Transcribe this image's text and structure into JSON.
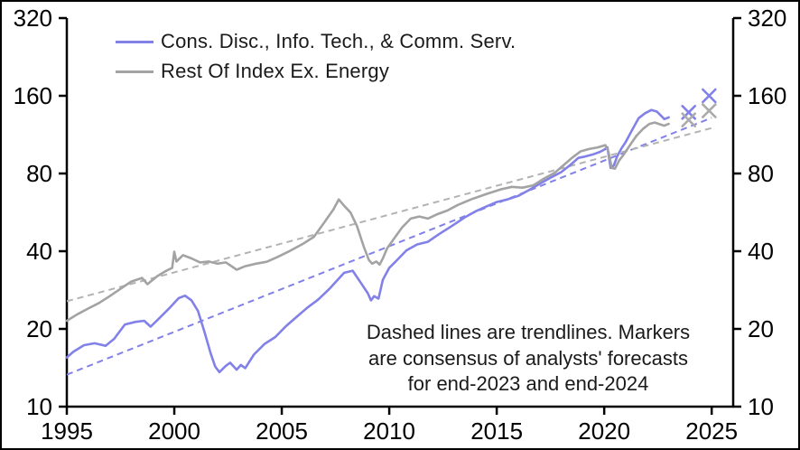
{
  "colors": {
    "tech_line": "#8181e8",
    "rest_line": "#a3a3a3",
    "tech_trend": "#8181e8",
    "rest_trend": "#b3b3b3",
    "axis": "#000000",
    "background": "#ffffff"
  },
  "legend": {
    "items": [
      {
        "label": "Cons. Disc., Info. Tech., & Comm. Serv.",
        "color": "#8181e8"
      },
      {
        "label": "Rest Of Index Ex. Energy",
        "color": "#a3a3a3"
      }
    ]
  },
  "annotation": {
    "lines": [
      "Dashed lines are trendlines. Markers",
      "are consensus of analysts' forecasts",
      "for end-2023 and end-2024"
    ]
  },
  "chart_data": {
    "type": "line",
    "title": "",
    "xlabel": "",
    "ylabel": "",
    "y_scale": "log2",
    "y_ticks": [
      320,
      160,
      80,
      40,
      20,
      10
    ],
    "x_ticks": [
      1995,
      2000,
      2005,
      2010,
      2015,
      2020,
      2025
    ],
    "x_range": [
      1995,
      2026
    ],
    "y_range": [
      10,
      320
    ],
    "grid": false,
    "legend_position": "top-left-inside",
    "series": [
      {
        "name": "Cons. Disc., Info. Tech., & Comm. Serv.",
        "color": "#8181e8",
        "style": "solid",
        "points": [
          [
            1995.0,
            15.5
          ],
          [
            1995.3,
            16.3
          ],
          [
            1995.8,
            17.3
          ],
          [
            1996.3,
            17.6
          ],
          [
            1996.8,
            17.2
          ],
          [
            1997.2,
            18.3
          ],
          [
            1997.7,
            20.8
          ],
          [
            1998.2,
            21.3
          ],
          [
            1998.6,
            21.5
          ],
          [
            1998.9,
            20.4
          ],
          [
            1999.3,
            22.0
          ],
          [
            1999.8,
            24.2
          ],
          [
            2000.2,
            26.3
          ],
          [
            2000.5,
            26.9
          ],
          [
            2000.8,
            25.8
          ],
          [
            2001.1,
            23.5
          ],
          [
            2001.4,
            19.5
          ],
          [
            2001.7,
            16.0
          ],
          [
            2001.9,
            14.3
          ],
          [
            2002.1,
            13.6
          ],
          [
            2002.4,
            14.4
          ],
          [
            2002.6,
            14.8
          ],
          [
            2002.9,
            13.9
          ],
          [
            2003.1,
            14.5
          ],
          [
            2003.3,
            14.1
          ],
          [
            2003.7,
            15.9
          ],
          [
            2004.2,
            17.5
          ],
          [
            2004.7,
            18.6
          ],
          [
            2005.2,
            20.5
          ],
          [
            2005.7,
            22.3
          ],
          [
            2006.2,
            24.2
          ],
          [
            2006.7,
            26.0
          ],
          [
            2007.2,
            28.5
          ],
          [
            2007.6,
            31.0
          ],
          [
            2007.9,
            33.0
          ],
          [
            2008.3,
            33.6
          ],
          [
            2008.7,
            30.0
          ],
          [
            2009.0,
            27.5
          ],
          [
            2009.15,
            25.8
          ],
          [
            2009.3,
            26.8
          ],
          [
            2009.5,
            26.2
          ],
          [
            2009.7,
            31.0
          ],
          [
            2010.0,
            34.5
          ],
          [
            2010.3,
            36.5
          ],
          [
            2010.8,
            40.3
          ],
          [
            2011.3,
            42.5
          ],
          [
            2011.8,
            43.5
          ],
          [
            2012.3,
            46.5
          ],
          [
            2012.9,
            50.0
          ],
          [
            2013.5,
            54.0
          ],
          [
            2014.0,
            57.0
          ],
          [
            2014.5,
            59.5
          ],
          [
            2015.0,
            62.0
          ],
          [
            2015.5,
            63.5
          ],
          [
            2016.0,
            65.5
          ],
          [
            2016.5,
            69.0
          ],
          [
            2017.0,
            73.0
          ],
          [
            2017.5,
            77.0
          ],
          [
            2018.0,
            81.0
          ],
          [
            2018.4,
            86.0
          ],
          [
            2018.8,
            92.0
          ],
          [
            2019.1,
            93.0
          ],
          [
            2019.5,
            95.0
          ],
          [
            2019.8,
            97.0
          ],
          [
            2020.0,
            99.0
          ],
          [
            2020.15,
            101.0
          ],
          [
            2020.3,
            84.0
          ],
          [
            2020.45,
            86.0
          ],
          [
            2020.6,
            93.0
          ],
          [
            2020.8,
            100.0
          ],
          [
            2021.0,
            106.0
          ],
          [
            2021.3,
            118.0
          ],
          [
            2021.6,
            131.0
          ],
          [
            2021.9,
            137.0
          ],
          [
            2022.2,
            141.0
          ],
          [
            2022.45,
            139.0
          ],
          [
            2022.6,
            135.0
          ],
          [
            2022.8,
            130.0
          ],
          [
            2023.0,
            132.0
          ]
        ]
      },
      {
        "name": "Rest Of Index Ex. Energy",
        "color": "#a3a3a3",
        "style": "solid",
        "points": [
          [
            1995.0,
            21.5
          ],
          [
            1995.5,
            22.8
          ],
          [
            1996.0,
            24.0
          ],
          [
            1996.5,
            25.2
          ],
          [
            1997.0,
            26.8
          ],
          [
            1997.5,
            28.6
          ],
          [
            1998.0,
            30.5
          ],
          [
            1998.5,
            31.5
          ],
          [
            1998.75,
            29.8
          ],
          [
            1999.2,
            32.0
          ],
          [
            1999.6,
            33.5
          ],
          [
            1999.9,
            34.5
          ],
          [
            2000.0,
            39.8
          ],
          [
            2000.1,
            36.5
          ],
          [
            2000.4,
            38.6
          ],
          [
            2000.8,
            37.5
          ],
          [
            2001.2,
            36.2
          ],
          [
            2001.6,
            36.5
          ],
          [
            2002.0,
            35.8
          ],
          [
            2002.4,
            36.2
          ],
          [
            2002.9,
            33.9
          ],
          [
            2003.3,
            35.0
          ],
          [
            2003.8,
            35.8
          ],
          [
            2004.3,
            36.4
          ],
          [
            2004.8,
            38.0
          ],
          [
            2005.4,
            40.2
          ],
          [
            2006.0,
            42.8
          ],
          [
            2006.5,
            45.5
          ],
          [
            2007.0,
            52.0
          ],
          [
            2007.4,
            58.0
          ],
          [
            2007.65,
            63.5
          ],
          [
            2007.9,
            60.0
          ],
          [
            2008.2,
            56.5
          ],
          [
            2008.5,
            50.0
          ],
          [
            2008.8,
            42.0
          ],
          [
            2009.05,
            37.0
          ],
          [
            2009.2,
            35.8
          ],
          [
            2009.4,
            36.5
          ],
          [
            2009.55,
            35.5
          ],
          [
            2009.7,
            37.5
          ],
          [
            2009.9,
            41.0
          ],
          [
            2010.2,
            44.5
          ],
          [
            2010.6,
            49.5
          ],
          [
            2011.0,
            53.5
          ],
          [
            2011.4,
            54.5
          ],
          [
            2011.8,
            53.5
          ],
          [
            2012.2,
            55.5
          ],
          [
            2012.7,
            57.5
          ],
          [
            2013.2,
            60.5
          ],
          [
            2013.8,
            63.5
          ],
          [
            2014.5,
            66.5
          ],
          [
            2015.2,
            69.5
          ],
          [
            2015.7,
            71.0
          ],
          [
            2016.2,
            70.5
          ],
          [
            2016.7,
            72.0
          ],
          [
            2017.2,
            76.5
          ],
          [
            2017.7,
            80.5
          ],
          [
            2018.1,
            86.0
          ],
          [
            2018.5,
            92.0
          ],
          [
            2018.9,
            97.5
          ],
          [
            2019.3,
            99.5
          ],
          [
            2019.7,
            101.0
          ],
          [
            2020.05,
            103.0
          ],
          [
            2020.2,
            97.0
          ],
          [
            2020.35,
            84.0
          ],
          [
            2020.5,
            83.5
          ],
          [
            2020.7,
            90.0
          ],
          [
            2020.9,
            94.5
          ],
          [
            2021.2,
            103.0
          ],
          [
            2021.5,
            112.0
          ],
          [
            2021.8,
            119.0
          ],
          [
            2022.1,
            124.5
          ],
          [
            2022.35,
            126.0
          ],
          [
            2022.6,
            124.0
          ],
          [
            2022.8,
            122.5
          ],
          [
            2023.0,
            124.5
          ]
        ]
      }
    ],
    "trendlines": [
      {
        "name": "Cons. Disc., Info. Tech., & Comm. Serv. trendline",
        "color": "#8181e8",
        "style": "dashed",
        "from": [
          1995.0,
          13.3
        ],
        "to": [
          2025.0,
          131.5
        ]
      },
      {
        "name": "Rest Of Index Ex. Energy trendline",
        "color": "#b3b3b3",
        "style": "dashed",
        "from": [
          1995.0,
          25.6
        ],
        "to": [
          2025.0,
          120.0
        ]
      }
    ],
    "markers": [
      {
        "series": "Cons. Disc., Info. Tech., & Comm. Serv.",
        "label": "end-2023 forecast",
        "x": 2023.93,
        "y": 138,
        "shape": "x",
        "color": "#8181e8"
      },
      {
        "series": "Cons. Disc., Info. Tech., & Comm. Serv.",
        "label": "end-2024 forecast",
        "x": 2024.88,
        "y": 160,
        "shape": "x",
        "color": "#8181e8"
      },
      {
        "series": "Rest Of Index Ex. Energy",
        "label": "end-2023 forecast",
        "x": 2023.93,
        "y": 129,
        "shape": "x",
        "color": "#ababab"
      },
      {
        "series": "Rest Of Index Ex. Energy",
        "label": "end-2024 forecast",
        "x": 2024.88,
        "y": 140,
        "shape": "x",
        "color": "#ababab"
      }
    ]
  }
}
